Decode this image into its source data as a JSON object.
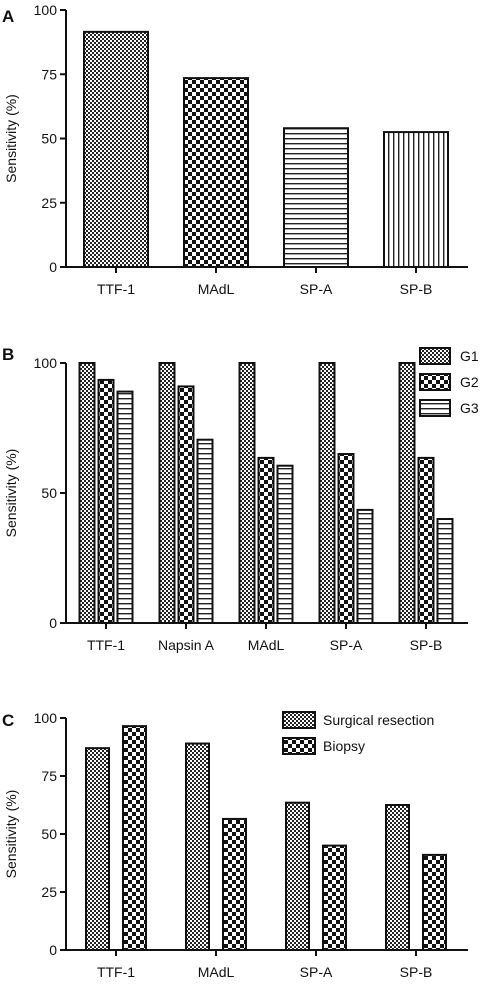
{
  "chart_data": [
    {
      "panel": "A",
      "type": "bar",
      "ylabel": "Sensitivity (%)",
      "ylim": [
        0,
        100
      ],
      "yticks": [
        0,
        25,
        50,
        75,
        100
      ],
      "categories": [
        "TTF-1",
        "MAdL",
        "SP-A",
        "SP-B"
      ],
      "values": [
        91.5,
        73.5,
        54,
        52.5
      ],
      "bar_patterns": [
        "checker",
        "checker-coarse",
        "hstripes",
        "vstripes"
      ],
      "legend": "none"
    },
    {
      "panel": "B",
      "type": "bar",
      "ylabel": "Sensitivity (%)",
      "ylim": [
        0,
        100
      ],
      "yticks": [
        0,
        50,
        100
      ],
      "categories": [
        "TTF-1",
        "Napsin A",
        "MAdL",
        "SP-A",
        "SP-B"
      ],
      "series": [
        {
          "name": "G1",
          "pattern": "checker",
          "values": [
            100,
            100,
            100,
            100,
            100
          ]
        },
        {
          "name": "G2",
          "pattern": "checker-coarse",
          "values": [
            93.5,
            91,
            63.5,
            65,
            63.5
          ]
        },
        {
          "name": "G3",
          "pattern": "hstripes",
          "values": [
            89,
            70.5,
            60.5,
            43.5,
            40
          ]
        }
      ],
      "legend": "top-right"
    },
    {
      "panel": "C",
      "type": "bar",
      "ylabel": "Sensitivity (%)",
      "ylim": [
        0,
        100
      ],
      "yticks": [
        0,
        25,
        50,
        75,
        100
      ],
      "categories": [
        "TTF-1",
        "MAdL",
        "SP-A",
        "SP-B"
      ],
      "series": [
        {
          "name": "Surgical resection",
          "pattern": "checker",
          "values": [
            87,
            89,
            63.5,
            62.5
          ]
        },
        {
          "name": "Biopsy",
          "pattern": "checker-coarse",
          "values": [
            96.5,
            56.5,
            45,
            41
          ]
        }
      ],
      "legend": "top-right"
    }
  ]
}
